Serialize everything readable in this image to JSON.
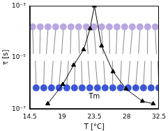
{
  "chart_data": {
    "type": "line",
    "x_label": "T [°C]",
    "y_label": "τ [s]",
    "log": "y",
    "grid": false,
    "series": [
      {
        "name": null,
        "color": "#000000",
        "marker": "triangle",
        "line_style": "solid",
        "x": [
          17,
          19.1,
          20.6,
          22,
          22.9,
          23.5,
          24.5,
          26.1,
          27.9,
          30.2,
          31.7
        ],
        "values": [
          1.6e-07,
          9e-07,
          5e-06,
          2e-05,
          0.00013,
          0.001,
          2.8e-05,
          2.8e-06,
          6e-07,
          2e-07,
          1.6e-07
        ]
      }
    ],
    "xlim": [
      14.5,
      32.5
    ],
    "xticks": [
      14.5,
      19,
      23.5,
      28,
      32.5
    ],
    "ylim": [
      1e-07,
      0.001
    ],
    "yticks": [
      {
        "value": 1e-07,
        "label": "10⁻⁷"
      },
      {
        "value": 1e-05,
        "label": "10⁻⁵"
      },
      {
        "value": 0.001,
        "label": "10⁻³"
      }
    ],
    "annotations": [
      {
        "text": "Tm",
        "x": 23.5,
        "y": 3e-07
      }
    ]
  }
}
